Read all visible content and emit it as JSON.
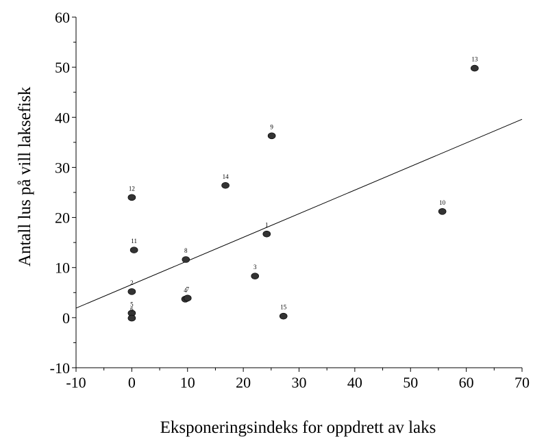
{
  "chart_data": {
    "type": "scatter",
    "xlabel": "Eksponeringsindeks for oppdrett av laks",
    "ylabel": "Antall lus på vill laksefisk",
    "xlim": [
      -10,
      70
    ],
    "ylim": [
      -10,
      60
    ],
    "x_ticks": [
      -10,
      0,
      10,
      20,
      30,
      40,
      50,
      60,
      70
    ],
    "y_ticks": [
      -10,
      0,
      10,
      20,
      30,
      40,
      50,
      60
    ],
    "x_tick_labels": [
      "-10",
      "0",
      "10",
      "20",
      "30",
      "40",
      "50",
      "60",
      "70"
    ],
    "y_tick_labels": [
      "-10",
      "0",
      "10",
      "20",
      "30",
      "40",
      "50",
      "60"
    ],
    "grid": false,
    "marker_color": "#333333",
    "points": [
      {
        "label": "1",
        "x": 24.2,
        "y": 16.7
      },
      {
        "label": "2",
        "x": 0.0,
        "y": 5.2
      },
      {
        "label": "3",
        "x": 22.1,
        "y": 8.3
      },
      {
        "label": "4",
        "x": 9.6,
        "y": 3.7
      },
      {
        "label": "5",
        "x": 0.0,
        "y": 0.9
      },
      {
        "label": "6",
        "x": 0.0,
        "y": -0.1
      },
      {
        "label": "7",
        "x": 10.0,
        "y": 3.9
      },
      {
        "label": "8",
        "x": 9.7,
        "y": 11.6
      },
      {
        "label": "9",
        "x": 25.1,
        "y": 36.3
      },
      {
        "label": "10",
        "x": 55.7,
        "y": 21.2
      },
      {
        "label": "11",
        "x": 0.4,
        "y": 13.5
      },
      {
        "label": "12",
        "x": 0.0,
        "y": 24.0
      },
      {
        "label": "13",
        "x": 61.5,
        "y": 49.8
      },
      {
        "label": "14",
        "x": 16.8,
        "y": 26.4
      },
      {
        "label": "15",
        "x": 27.2,
        "y": 0.3
      }
    ],
    "trendline": {
      "x": [
        -10,
        70
      ],
      "y": [
        1.9,
        39.6
      ]
    }
  }
}
